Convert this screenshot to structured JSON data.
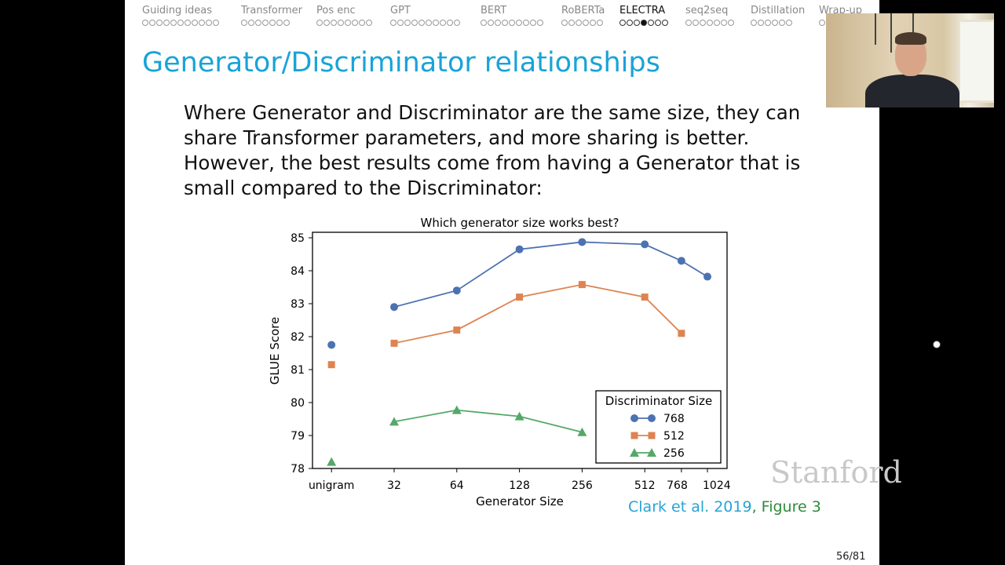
{
  "nav": {
    "sections": [
      {
        "label": "Guiding ideas",
        "dots": 11,
        "active_dot": null
      },
      {
        "label": "Transformer",
        "dots": 7,
        "active_dot": null
      },
      {
        "label": "Pos enc",
        "dots": 8,
        "active_dot": null
      },
      {
        "label": "GPT",
        "dots": 10,
        "active_dot": null
      },
      {
        "label": "BERT",
        "dots": 9,
        "active_dot": null
      },
      {
        "label": "RoBERTa",
        "dots": 6,
        "active_dot": null
      },
      {
        "label": "ELECTRA",
        "dots": 7,
        "active_dot": 4
      },
      {
        "label": "seq2seq",
        "dots": 7,
        "active_dot": null
      },
      {
        "label": "Distillation",
        "dots": 6,
        "active_dot": null
      },
      {
        "label": "Wrap-up",
        "dots": 1,
        "active_dot": null
      }
    ]
  },
  "slide": {
    "title": "Generator/Discriminator relationships",
    "body": "Where Generator and Discriminator are the same size, they can share Transformer parameters, and more sharing is better. However, the best results come from having a Generator that is small compared to the Discriminator:",
    "citation_authors": "Clark et al. 2019",
    "citation_sep": ", ",
    "citation_figure": "Figure 3",
    "watermark": "Stanford",
    "page_number": "56/81"
  },
  "chart_data": {
    "type": "line",
    "title": "Which generator size works best?",
    "xlabel": "Generator Size",
    "ylabel": "GLUE Score",
    "x_scale": "log2 (unigram placed left of 32)",
    "categories": [
      "unigram",
      "32",
      "64",
      "128",
      "256",
      "512",
      "768",
      "1024"
    ],
    "ylim": [
      78,
      85
    ],
    "yticks": [
      78,
      79,
      80,
      81,
      82,
      83,
      84,
      85
    ],
    "grid": false,
    "legend": {
      "title": "Discriminator Size",
      "placement": "lower-right"
    },
    "series": [
      {
        "name": "768",
        "color": "#4c72b0",
        "marker": "circle",
        "values": [
          81.75,
          82.9,
          83.4,
          84.65,
          84.87,
          84.8,
          84.3,
          83.82
        ]
      },
      {
        "name": "512",
        "color": "#dd8452",
        "marker": "square",
        "values": [
          81.15,
          81.8,
          82.2,
          83.2,
          83.58,
          83.2,
          82.1,
          null
        ]
      },
      {
        "name": "256",
        "color": "#55a868",
        "marker": "triangle",
        "values": [
          78.2,
          79.42,
          79.77,
          79.58,
          79.1,
          null,
          null,
          null
        ]
      }
    ]
  }
}
